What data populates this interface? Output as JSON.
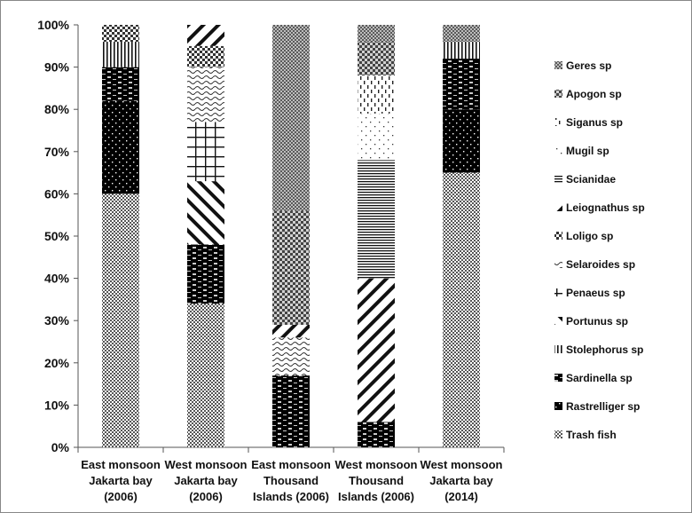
{
  "chart_data": {
    "type": "bar",
    "stacked": true,
    "title": "",
    "xlabel": "",
    "ylabel": "",
    "ylim": [
      0,
      100
    ],
    "y_ticks": [
      "0%",
      "10%",
      "20%",
      "30%",
      "40%",
      "50%",
      "60%",
      "70%",
      "80%",
      "90%",
      "100%"
    ],
    "grid": false,
    "legend_position": "right",
    "categories": [
      [
        "East monsoon",
        "Jakarta bay",
        "(2006)"
      ],
      [
        "West monsoon",
        "Jakarta bay",
        "(2006)"
      ],
      [
        "East monsoon",
        "Thousand",
        "Islands (2006)"
      ],
      [
        "West monsoon",
        "Thousand",
        "Islands (2006)"
      ],
      [
        "West monsoon",
        "Jakarta bay",
        "(2014)"
      ]
    ],
    "series": [
      {
        "name": "Trash fish",
        "pattern": "fine-checker",
        "values": [
          60,
          34,
          0,
          0,
          65
        ]
      },
      {
        "name": "Rastrelliger sp",
        "pattern": "black-dots",
        "values": [
          22,
          0,
          0,
          0,
          15
        ]
      },
      {
        "name": "Sardinella sp",
        "pattern": "black-dashes",
        "values": [
          8,
          14,
          17,
          6,
          12
        ]
      },
      {
        "name": "Stolephorus sp",
        "pattern": "vertical-lines",
        "values": [
          6,
          0,
          0,
          0,
          4
        ]
      },
      {
        "name": "Portunus sp",
        "pattern": "wide-diagonal",
        "values": [
          0,
          15,
          0,
          0,
          0
        ]
      },
      {
        "name": "Penaeus sp",
        "pattern": "grid",
        "values": [
          0,
          14,
          0,
          0,
          0
        ]
      },
      {
        "name": "Selaroides sp",
        "pattern": "waves",
        "values": [
          0,
          13,
          9,
          0,
          0
        ]
      },
      {
        "name": "Loligo sp",
        "pattern": "checker",
        "values": [
          4,
          5,
          0,
          0,
          0
        ]
      },
      {
        "name": "Leiognathus sp",
        "pattern": "back-diagonal",
        "values": [
          0,
          5,
          3,
          34,
          0
        ]
      },
      {
        "name": "Scianidae",
        "pattern": "horizontal-lines",
        "values": [
          0,
          0,
          0,
          28,
          0
        ]
      },
      {
        "name": "Mugil sp",
        "pattern": "sparse-dots",
        "values": [
          0,
          0,
          0,
          11,
          0
        ]
      },
      {
        "name": "Siganus sp",
        "pattern": "dashed-vertical",
        "values": [
          0,
          0,
          0,
          9,
          0
        ]
      },
      {
        "name": "Apogon sp",
        "pattern": "coarse-checker",
        "values": [
          0,
          0,
          27,
          8,
          0
        ]
      },
      {
        "name": "Geres sp",
        "pattern": "gray-dots",
        "values": [
          0,
          0,
          44,
          4,
          4
        ]
      }
    ],
    "legend_order": [
      "Geres sp",
      "Apogon sp",
      "Siganus sp",
      "Mugil sp",
      "Scianidae",
      "Leiognathus sp",
      "Loligo sp",
      "Selaroides sp",
      "Penaeus sp",
      "Portunus sp",
      "Stolephorus sp",
      "Sardinella sp",
      "Rastrelliger sp",
      "Trash fish"
    ]
  }
}
